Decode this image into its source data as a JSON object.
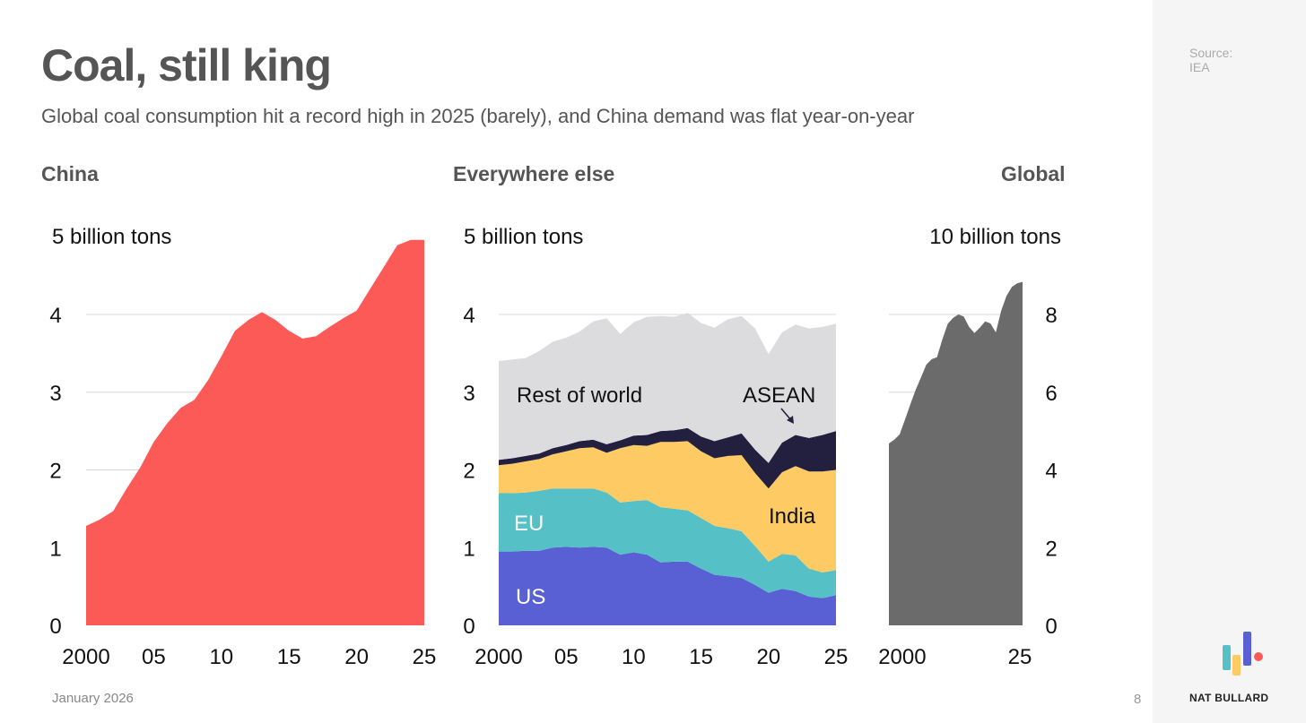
{
  "title": "Coal, still king",
  "subtitle": "Global coal consumption hit a record high in 2025 (barely), and China demand was flat year-on-year",
  "source_label": "Source:",
  "source_value": "IEA",
  "date": "January 2026",
  "page_number": "8",
  "brand": "NAT BULLARD",
  "colors": {
    "china": "#fc5a57",
    "us": "#5860d4",
    "eu": "#55c0c6",
    "india": "#fdca64",
    "asean": "#23203f",
    "row": "#dcdcde",
    "global": "#6b6b6b"
  },
  "chart_data": [
    {
      "type": "area",
      "title": "China",
      "unit_label": "5 billion tons",
      "ylim": [
        0,
        5
      ],
      "yticks": [
        "0",
        "1",
        "2",
        "3",
        "4"
      ],
      "xticks": [
        "2000",
        "05",
        "10",
        "15",
        "20",
        "25"
      ],
      "x": [
        2000,
        2001,
        2002,
        2003,
        2004,
        2005,
        2006,
        2007,
        2008,
        2009,
        2010,
        2011,
        2012,
        2013,
        2014,
        2015,
        2016,
        2017,
        2018,
        2019,
        2020,
        2021,
        2022,
        2023,
        2024,
        2025
      ],
      "series": [
        {
          "name": "China",
          "values": [
            1.28,
            1.36,
            1.47,
            1.76,
            2.03,
            2.36,
            2.6,
            2.8,
            2.9,
            3.15,
            3.46,
            3.79,
            3.93,
            4.03,
            3.93,
            3.79,
            3.69,
            3.72,
            3.84,
            3.95,
            4.05,
            4.33,
            4.61,
            4.89,
            4.96,
            4.96
          ]
        }
      ]
    },
    {
      "type": "area",
      "stacked": true,
      "title": "Everywhere else",
      "unit_label": "5 billion tons",
      "ylim": [
        0,
        5
      ],
      "yticks": [
        "0",
        "1",
        "2",
        "3",
        "4"
      ],
      "xticks": [
        "2000",
        "05",
        "10",
        "15",
        "20",
        "25"
      ],
      "x": [
        2000,
        2001,
        2002,
        2003,
        2004,
        2005,
        2006,
        2007,
        2008,
        2009,
        2010,
        2011,
        2012,
        2013,
        2014,
        2015,
        2016,
        2017,
        2018,
        2019,
        2020,
        2021,
        2022,
        2023,
        2024,
        2025
      ],
      "series": [
        {
          "name": "US",
          "values": [
            0.95,
            0.95,
            0.96,
            0.96,
            1.0,
            1.01,
            1.0,
            1.01,
            1.0,
            0.91,
            0.94,
            0.91,
            0.81,
            0.82,
            0.82,
            0.73,
            0.65,
            0.63,
            0.61,
            0.52,
            0.42,
            0.47,
            0.44,
            0.37,
            0.35,
            0.39
          ]
        },
        {
          "name": "EU",
          "values": [
            0.75,
            0.75,
            0.75,
            0.77,
            0.76,
            0.75,
            0.76,
            0.75,
            0.71,
            0.67,
            0.66,
            0.7,
            0.71,
            0.68,
            0.66,
            0.65,
            0.63,
            0.62,
            0.6,
            0.5,
            0.4,
            0.45,
            0.46,
            0.36,
            0.33,
            0.32
          ]
        },
        {
          "name": "India",
          "values": [
            0.36,
            0.38,
            0.4,
            0.41,
            0.44,
            0.48,
            0.52,
            0.53,
            0.51,
            0.7,
            0.72,
            0.7,
            0.84,
            0.86,
            0.89,
            0.86,
            0.87,
            0.93,
            0.98,
            0.94,
            0.94,
            1.05,
            1.15,
            1.25,
            1.3,
            1.29
          ]
        },
        {
          "name": "ASEAN",
          "values": [
            0.07,
            0.07,
            0.07,
            0.07,
            0.08,
            0.08,
            0.09,
            0.1,
            0.11,
            0.1,
            0.12,
            0.14,
            0.14,
            0.15,
            0.17,
            0.19,
            0.22,
            0.24,
            0.28,
            0.3,
            0.33,
            0.38,
            0.4,
            0.43,
            0.47,
            0.5
          ]
        },
        {
          "name": "Rest of world",
          "values": [
            1.27,
            1.27,
            1.26,
            1.32,
            1.37,
            1.38,
            1.41,
            1.52,
            1.62,
            1.37,
            1.46,
            1.52,
            1.48,
            1.46,
            1.48,
            1.46,
            1.46,
            1.52,
            1.51,
            1.56,
            1.4,
            1.42,
            1.42,
            1.41,
            1.39,
            1.38
          ]
        }
      ]
    },
    {
      "type": "area",
      "title": "Global",
      "unit_label": "10 billion tons",
      "ylim": [
        0,
        10
      ],
      "yticks": [
        "0",
        "2",
        "4",
        "6",
        "8"
      ],
      "xticks": [
        "2000",
        "25"
      ],
      "x": [
        2000,
        2001,
        2002,
        2003,
        2004,
        2005,
        2006,
        2007,
        2008,
        2009,
        2010,
        2011,
        2012,
        2013,
        2014,
        2015,
        2016,
        2017,
        2018,
        2019,
        2020,
        2021,
        2022,
        2023,
        2024,
        2025
      ],
      "series": [
        {
          "name": "Global",
          "values": [
            4.68,
            4.78,
            4.91,
            5.29,
            5.68,
            6.06,
            6.38,
            6.71,
            6.85,
            6.9,
            7.36,
            7.76,
            7.91,
            8.0,
            7.95,
            7.68,
            7.52,
            7.66,
            7.82,
            7.77,
            7.54,
            8.1,
            8.48,
            8.71,
            8.8,
            8.84
          ]
        }
      ]
    }
  ]
}
